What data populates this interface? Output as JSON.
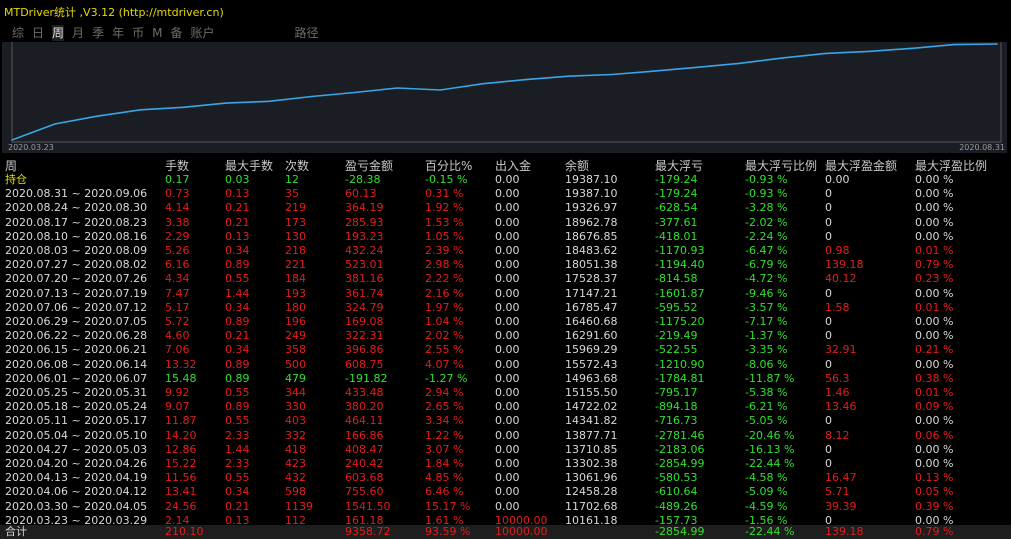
{
  "title": "MTDriver统计 ,V3.12 (http://mtdriver.cn)",
  "tabs": [
    "综",
    "日",
    "周",
    "月",
    "季",
    "年",
    "币",
    "M",
    "备",
    "账户",
    "路径"
  ],
  "active_tab": 2,
  "chart_data": {
    "type": "line",
    "x_start_label": "2020.03.23",
    "x_end_label": "2020.08.31",
    "x": [
      "2020.03.23",
      "2020.03.30",
      "2020.04.06",
      "2020.04.13",
      "2020.04.20",
      "2020.04.27",
      "2020.05.04",
      "2020.05.11",
      "2020.05.18",
      "2020.05.25",
      "2020.06.01",
      "2020.06.08",
      "2020.06.15",
      "2020.06.22",
      "2020.06.29",
      "2020.07.06",
      "2020.07.13",
      "2020.07.20",
      "2020.07.27",
      "2020.08.03",
      "2020.08.10",
      "2020.08.17",
      "2020.08.24",
      "2020.08.31"
    ],
    "values": [
      10161.18,
      11702.68,
      12458.28,
      13061.96,
      13302.38,
      13710.85,
      13877.71,
      14341.82,
      14722.02,
      15155.5,
      14963.68,
      15572.43,
      15969.29,
      16291.6,
      16460.68,
      16785.47,
      17147.21,
      17528.37,
      18051.38,
      18483.62,
      18676.85,
      18962.78,
      19326.97,
      19387.1
    ],
    "grid": false,
    "line_color": "#3aa5e6"
  },
  "columns": [
    "周",
    "手数",
    "最大手数",
    "次数",
    "盈亏金额",
    "百分比%",
    "出入金",
    "余额",
    "最大浮亏",
    "最大浮亏比例",
    "最大浮盈金额",
    "最大浮盈比例"
  ],
  "rows": [
    {
      "c": [
        "持仓",
        "0.17",
        "0.03",
        "12",
        "-28.38",
        "-0.15 %",
        "0.00",
        "19387.10",
        "-179.24",
        "-0.93 %",
        "0.00",
        "0.00 %"
      ],
      "k": [
        "y",
        "g",
        "g",
        "g",
        "g",
        "g",
        "w",
        "w",
        "g",
        "g",
        "w",
        "w"
      ]
    },
    {
      "c": [
        "2020.08.31 ~ 2020.09.06",
        "0.73",
        "0.13",
        "35",
        "60.13",
        "0.31 %",
        "0.00",
        "19387.10",
        "-179.24",
        "-0.93 %",
        "0",
        "0.00 %"
      ],
      "k": [
        "w",
        "r",
        "r",
        "r",
        "r",
        "r",
        "w",
        "w",
        "g",
        "g",
        "w",
        "w"
      ]
    },
    {
      "c": [
        "2020.08.24 ~ 2020.08.30",
        "4.14",
        "0.21",
        "219",
        "364.19",
        "1.92 %",
        "0.00",
        "19326.97",
        "-628.54",
        "-3.28 %",
        "0",
        "0.00 %"
      ],
      "k": [
        "w",
        "r",
        "r",
        "r",
        "r",
        "r",
        "w",
        "w",
        "g",
        "g",
        "w",
        "w"
      ]
    },
    {
      "c": [
        "2020.08.17 ~ 2020.08.23",
        "3.38",
        "0.21",
        "173",
        "285.93",
        "1.53 %",
        "0.00",
        "18962.78",
        "-377.61",
        "-2.02 %",
        "0",
        "0.00 %"
      ],
      "k": [
        "w",
        "r",
        "r",
        "r",
        "r",
        "r",
        "w",
        "w",
        "g",
        "g",
        "w",
        "w"
      ]
    },
    {
      "c": [
        "2020.08.10 ~ 2020.08.16",
        "2.29",
        "0.13",
        "130",
        "193.23",
        "1.05 %",
        "0.00",
        "18676.85",
        "-418.01",
        "-2.24 %",
        "0",
        "0.00 %"
      ],
      "k": [
        "w",
        "r",
        "r",
        "r",
        "r",
        "r",
        "w",
        "w",
        "g",
        "g",
        "w",
        "w"
      ]
    },
    {
      "c": [
        "2020.08.03 ~ 2020.08.09",
        "5.26",
        "0.34",
        "218",
        "432.24",
        "2.39 %",
        "0.00",
        "18483.62",
        "-1170.93",
        "-6.47 %",
        "0.98",
        "0.01 %"
      ],
      "k": [
        "w",
        "r",
        "r",
        "r",
        "r",
        "r",
        "w",
        "w",
        "g",
        "g",
        "r",
        "r"
      ]
    },
    {
      "c": [
        "2020.07.27 ~ 2020.08.02",
        "6.16",
        "0.89",
        "221",
        "523.01",
        "2.98 %",
        "0.00",
        "18051.38",
        "-1194.40",
        "-6.79 %",
        "139.18",
        "0.79 %"
      ],
      "k": [
        "w",
        "r",
        "r",
        "r",
        "r",
        "r",
        "w",
        "w",
        "g",
        "g",
        "r",
        "r"
      ]
    },
    {
      "c": [
        "2020.07.20 ~ 2020.07.26",
        "4.34",
        "0.55",
        "184",
        "381.16",
        "2.22 %",
        "0.00",
        "17528.37",
        "-814.58",
        "-4.72 %",
        "40.12",
        "0.23 %"
      ],
      "k": [
        "w",
        "r",
        "r",
        "r",
        "r",
        "r",
        "w",
        "w",
        "g",
        "g",
        "r",
        "r"
      ]
    },
    {
      "c": [
        "2020.07.13 ~ 2020.07.19",
        "7.47",
        "1.44",
        "193",
        "361.74",
        "2.16 %",
        "0.00",
        "17147.21",
        "-1601.87",
        "-9.46 %",
        "0",
        "0.00 %"
      ],
      "k": [
        "w",
        "r",
        "r",
        "r",
        "r",
        "r",
        "w",
        "w",
        "g",
        "g",
        "w",
        "w"
      ]
    },
    {
      "c": [
        "2020.07.06 ~ 2020.07.12",
        "5.17",
        "0.34",
        "180",
        "324.79",
        "1.97 %",
        "0.00",
        "16785.47",
        "-595.52",
        "-3.57 %",
        "1.58",
        "0.01 %"
      ],
      "k": [
        "w",
        "r",
        "r",
        "r",
        "r",
        "r",
        "w",
        "w",
        "g",
        "g",
        "r",
        "r"
      ]
    },
    {
      "c": [
        "2020.06.29 ~ 2020.07.05",
        "5.72",
        "0.89",
        "196",
        "169.08",
        "1.04 %",
        "0.00",
        "16460.68",
        "-1175.20",
        "-7.17 %",
        "0",
        "0.00 %"
      ],
      "k": [
        "w",
        "r",
        "r",
        "r",
        "r",
        "r",
        "w",
        "w",
        "g",
        "g",
        "w",
        "w"
      ]
    },
    {
      "c": [
        "2020.06.22 ~ 2020.06.28",
        "4.60",
        "0.21",
        "249",
        "322.31",
        "2.02 %",
        "0.00",
        "16291.60",
        "-219.49",
        "-1.37 %",
        "0",
        "0.00 %"
      ],
      "k": [
        "w",
        "r",
        "r",
        "r",
        "r",
        "r",
        "w",
        "w",
        "g",
        "g",
        "w",
        "w"
      ]
    },
    {
      "c": [
        "2020.06.15 ~ 2020.06.21",
        "7.06",
        "0.34",
        "358",
        "396.86",
        "2.55 %",
        "0.00",
        "15969.29",
        "-522.55",
        "-3.35 %",
        "32.91",
        "0.21 %"
      ],
      "k": [
        "w",
        "r",
        "r",
        "r",
        "r",
        "r",
        "w",
        "w",
        "g",
        "g",
        "r",
        "r"
      ]
    },
    {
      "c": [
        "2020.06.08 ~ 2020.06.14",
        "13.32",
        "0.89",
        "500",
        "608.75",
        "4.07 %",
        "0.00",
        "15572.43",
        "-1210.90",
        "-8.06 %",
        "0",
        "0.00 %"
      ],
      "k": [
        "w",
        "r",
        "r",
        "r",
        "r",
        "r",
        "w",
        "w",
        "g",
        "g",
        "w",
        "w"
      ]
    },
    {
      "c": [
        "2020.06.01 ~ 2020.06.07",
        "15.48",
        "0.89",
        "479",
        "-191.82",
        "-1.27 %",
        "0.00",
        "14963.68",
        "-1784.81",
        "-11.87 %",
        "56.3",
        "0.38 %"
      ],
      "k": [
        "w",
        "g",
        "g",
        "g",
        "g",
        "g",
        "w",
        "w",
        "g",
        "g",
        "r",
        "r"
      ]
    },
    {
      "c": [
        "2020.05.25 ~ 2020.05.31",
        "9.92",
        "0.55",
        "344",
        "433.48",
        "2.94 %",
        "0.00",
        "15155.50",
        "-795.17",
        "-5.38 %",
        "1.46",
        "0.01 %"
      ],
      "k": [
        "w",
        "r",
        "r",
        "r",
        "r",
        "r",
        "w",
        "w",
        "g",
        "g",
        "r",
        "r"
      ]
    },
    {
      "c": [
        "2020.05.18 ~ 2020.05.24",
        "9.07",
        "0.89",
        "330",
        "380.20",
        "2.65 %",
        "0.00",
        "14722.02",
        "-894.18",
        "-6.21 %",
        "13.46",
        "0.09 %"
      ],
      "k": [
        "w",
        "r",
        "r",
        "r",
        "r",
        "r",
        "w",
        "w",
        "g",
        "g",
        "r",
        "r"
      ]
    },
    {
      "c": [
        "2020.05.11 ~ 2020.05.17",
        "11.87",
        "0.55",
        "403",
        "464.11",
        "3.34 %",
        "0.00",
        "14341.82",
        "-716.73",
        "-5.05 %",
        "0",
        "0.00 %"
      ],
      "k": [
        "w",
        "r",
        "r",
        "r",
        "r",
        "r",
        "w",
        "w",
        "g",
        "g",
        "w",
        "w"
      ]
    },
    {
      "c": [
        "2020.05.04 ~ 2020.05.10",
        "14.20",
        "2.33",
        "332",
        "166.86",
        "1.22 %",
        "0.00",
        "13877.71",
        "-2781.46",
        "-20.46 %",
        "8.12",
        "0.06 %"
      ],
      "k": [
        "w",
        "r",
        "r",
        "r",
        "r",
        "r",
        "w",
        "w",
        "g",
        "g",
        "r",
        "r"
      ]
    },
    {
      "c": [
        "2020.04.27 ~ 2020.05.03",
        "12.86",
        "1.44",
        "418",
        "408.47",
        "3.07 %",
        "0.00",
        "13710.85",
        "-2183.06",
        "-16.13 %",
        "0",
        "0.00 %"
      ],
      "k": [
        "w",
        "r",
        "r",
        "r",
        "r",
        "r",
        "w",
        "w",
        "g",
        "g",
        "w",
        "w"
      ]
    },
    {
      "c": [
        "2020.04.20 ~ 2020.04.26",
        "15.22",
        "2.33",
        "423",
        "240.42",
        "1.84 %",
        "0.00",
        "13302.38",
        "-2854.99",
        "-22.44 %",
        "0",
        "0.00 %"
      ],
      "k": [
        "w",
        "r",
        "r",
        "r",
        "r",
        "r",
        "w",
        "w",
        "g",
        "g",
        "w",
        "w"
      ]
    },
    {
      "c": [
        "2020.04.13 ~ 2020.04.19",
        "11.56",
        "0.55",
        "432",
        "603.68",
        "4.85 %",
        "0.00",
        "13061.96",
        "-580.53",
        "-4.58 %",
        "16.47",
        "0.13 %"
      ],
      "k": [
        "w",
        "r",
        "r",
        "r",
        "r",
        "r",
        "w",
        "w",
        "g",
        "g",
        "r",
        "r"
      ]
    },
    {
      "c": [
        "2020.04.06 ~ 2020.04.12",
        "13.41",
        "0.34",
        "598",
        "755.60",
        "6.46 %",
        "0.00",
        "12458.28",
        "-610.64",
        "-5.09 %",
        "5.71",
        "0.05 %"
      ],
      "k": [
        "w",
        "r",
        "r",
        "r",
        "r",
        "r",
        "w",
        "w",
        "g",
        "g",
        "r",
        "r"
      ]
    },
    {
      "c": [
        "2020.03.30 ~ 2020.04.05",
        "24.56",
        "0.21",
        "1139",
        "1541.50",
        "15.17 %",
        "0.00",
        "11702.68",
        "-489.26",
        "-4.59 %",
        "39.39",
        "0.39 %"
      ],
      "k": [
        "w",
        "r",
        "r",
        "r",
        "r",
        "r",
        "w",
        "w",
        "g",
        "g",
        "r",
        "r"
      ]
    },
    {
      "c": [
        "2020.03.23 ~ 2020.03.29",
        "2.14",
        "0.13",
        "112",
        "161.18",
        "1.61 %",
        "10000.00",
        "10161.18",
        "-157.73",
        "-1.56 %",
        "0",
        "0.00 %"
      ],
      "k": [
        "w",
        "r",
        "r",
        "r",
        "r",
        "r",
        "r",
        "w",
        "g",
        "g",
        "w",
        "w"
      ]
    }
  ],
  "total": {
    "c": [
      "合计",
      "210.10",
      "",
      "",
      "9358.72",
      "93.59 %",
      "10000.00",
      "",
      "-2854.99",
      "-22.44 %",
      "139.18",
      "0.79 %"
    ],
    "k": [
      "w",
      "r",
      "r",
      "r",
      "r",
      "r",
      "r",
      "w",
      "g",
      "g",
      "r",
      "r"
    ]
  },
  "colors": {
    "red": "#e51c1c",
    "green": "#31e02f",
    "yellow": "#e0e000",
    "line": "#3aa5e6",
    "chart_bg": "#1a1e24"
  }
}
